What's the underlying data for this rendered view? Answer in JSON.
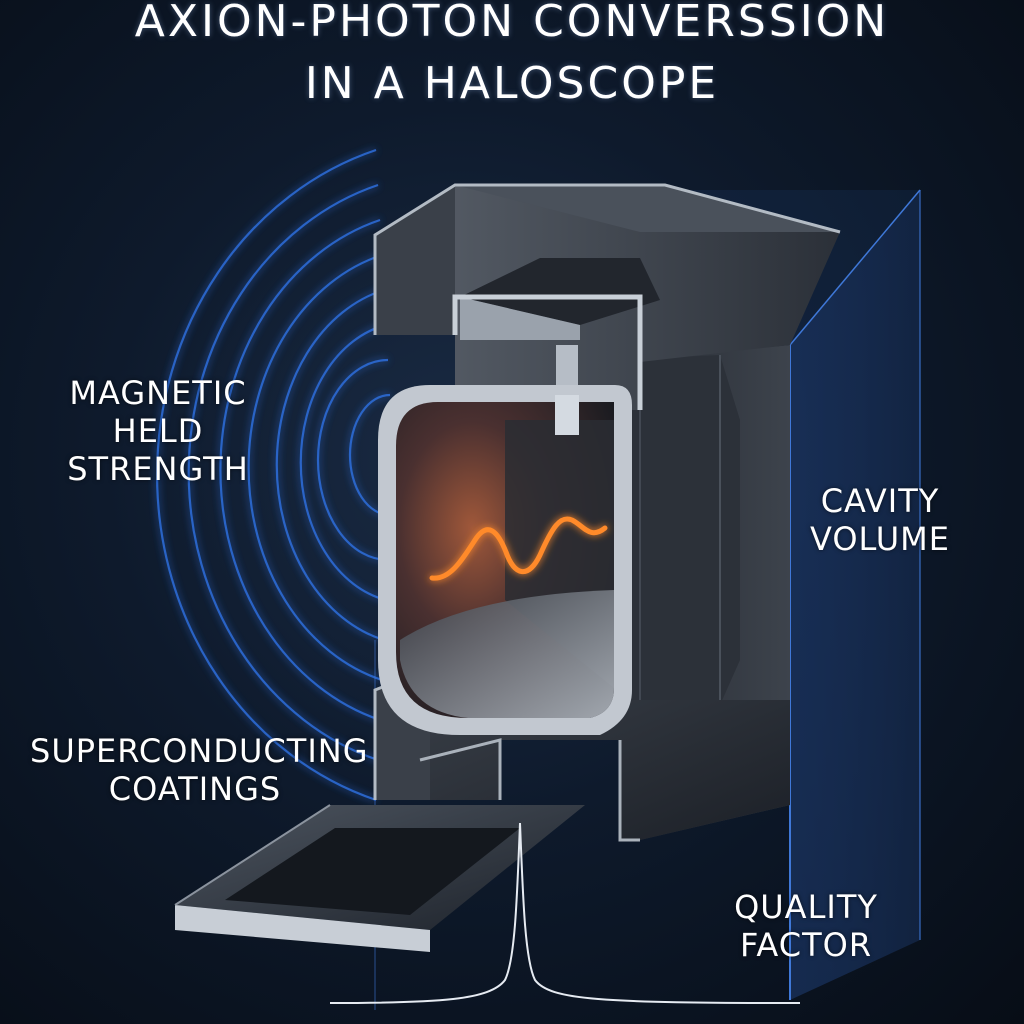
{
  "title": {
    "line1": "AXION-PHOTON CONVERSSION",
    "line2": "IN A HALOSCOPE"
  },
  "labels": {
    "magnetic_field": [
      "MAGNETIC",
      "HELD",
      "STRENGTH"
    ],
    "cavity_volume": [
      "CAVITY",
      "VOLUME"
    ],
    "superconducting": [
      "SUPERCONDUCTING",
      "COATINGS"
    ],
    "quality_factor": [
      "QUALITY",
      "FACTOR"
    ]
  },
  "colors": {
    "background": "#0b1420",
    "field_lines": "#2f6fe0",
    "photon_wave": "#ff8a2a",
    "cavity_metal": "#a9b1bb",
    "cavity_inner_glow": "#9a5a3a",
    "volume_box": "#2c5aa8",
    "text": "#ffffff"
  }
}
